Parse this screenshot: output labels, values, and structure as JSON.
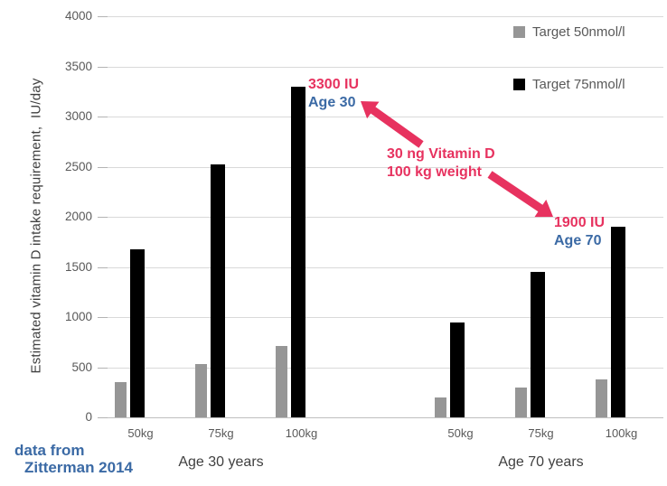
{
  "colors": {
    "gray_series": "#969696",
    "black_series": "#000000",
    "annotation_pink": "#e7325f",
    "annotation_blue": "#3b6aa5",
    "tick_text": "#595959",
    "gridline": "#d9d9d9"
  },
  "figure": {
    "source_note_line1": "data from",
    "source_note_line2": "Zitterman 2014"
  },
  "chart_data": {
    "type": "bar",
    "title": "",
    "xlabel": "",
    "ylabel": "Estimated vitamin D intake requirement,  IU/day",
    "ylim": [
      0,
      4000
    ],
    "yticks": [
      4000,
      3500,
      3000,
      2500,
      2000,
      1500,
      1000,
      500,
      0
    ],
    "grid": "horizontal",
    "legend_position": "top-right",
    "legend": [
      {
        "label": "Target 50nmol/l",
        "color_key": "gray_series"
      },
      {
        "label": "Target 75nmol/l",
        "color_key": "black_series"
      }
    ],
    "groups": [
      {
        "label": "Age 30 years",
        "categories": [
          "50kg",
          "75kg",
          "100kg"
        ],
        "series": [
          {
            "name": "Target 50nmol/l",
            "values": [
              350,
              530,
              710
            ]
          },
          {
            "name": "Target 75nmol/l",
            "values": [
              1680,
              2520,
              3300
            ]
          }
        ]
      },
      {
        "label": "Age 70 years",
        "categories": [
          "50kg",
          "75kg",
          "100kg"
        ],
        "series": [
          {
            "name": "Target 50nmol/l",
            "values": [
              200,
              300,
              380
            ]
          },
          {
            "name": "Target 75nmol/l",
            "values": [
              950,
              1450,
              1900
            ]
          }
        ]
      }
    ],
    "annotations": [
      {
        "lines": [
          {
            "text": "3300 IU",
            "color_key": "annotation_pink"
          },
          {
            "text": "Age 30",
            "color_key": "annotation_blue"
          }
        ]
      },
      {
        "lines": [
          {
            "text": "30 ng Vitamin D",
            "color_key": "annotation_pink"
          },
          {
            "text": "100 kg weight",
            "color_key": "annotation_pink"
          }
        ]
      },
      {
        "lines": [
          {
            "text": "1900 IU",
            "color_key": "annotation_pink"
          },
          {
            "text": "Age 70",
            "color_key": "annotation_blue"
          }
        ]
      }
    ],
    "arrows": [
      {
        "description": "pink arrow pointing up-left from the vitamin D note toward the Age 30 / 3300 IU bar"
      },
      {
        "description": "pink arrow pointing down-right from the vitamin D note toward the Age 70 / 1900 IU bar"
      }
    ]
  }
}
